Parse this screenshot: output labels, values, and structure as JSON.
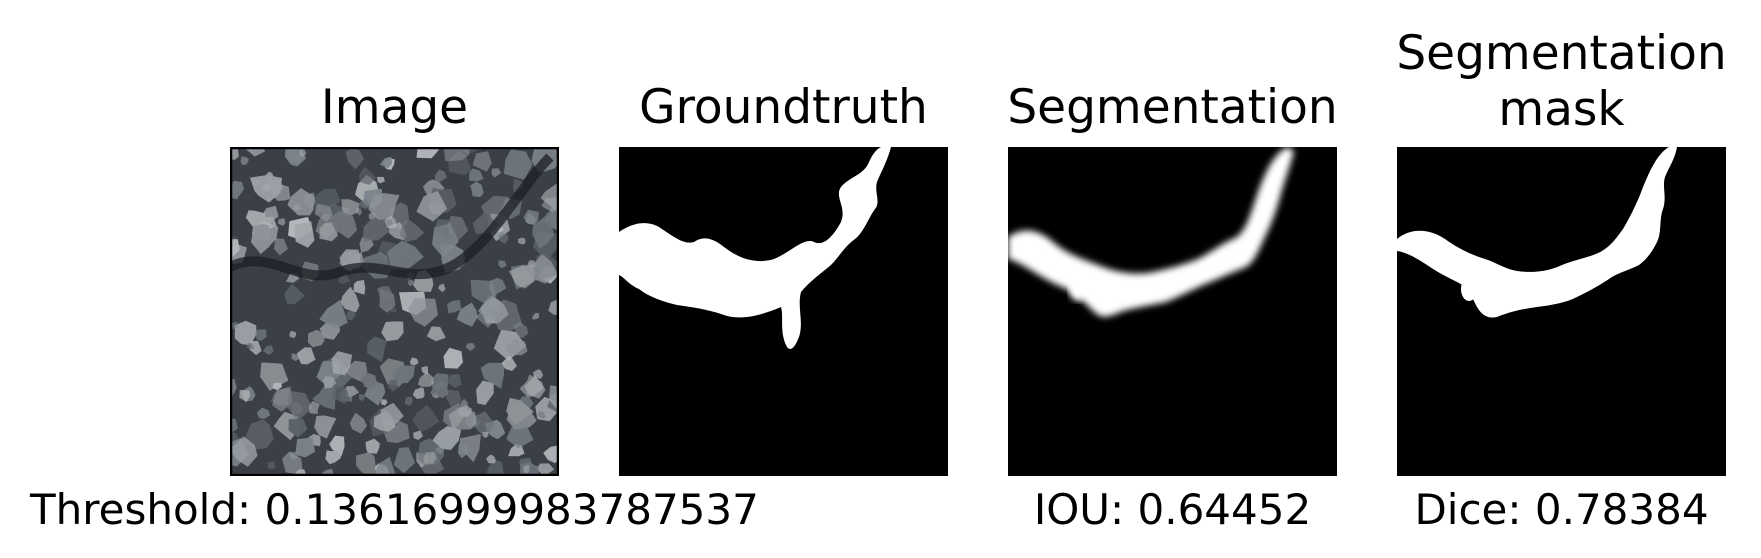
{
  "panels": {
    "image": {
      "title": "Image"
    },
    "groundtruth": {
      "title": "Groundtruth"
    },
    "segmentation": {
      "title": "Segmentation"
    },
    "segmentation_mask": {
      "title": "Segmentation\nmask"
    }
  },
  "metrics": {
    "threshold": "Threshold: 0.13616999983787537",
    "iou": "IOU: 0.64452",
    "dice": "Dice: 0.78384"
  },
  "colors": {
    "background": "#000000",
    "foreground": "#ffffff",
    "stone_base": "#3a3e45"
  }
}
